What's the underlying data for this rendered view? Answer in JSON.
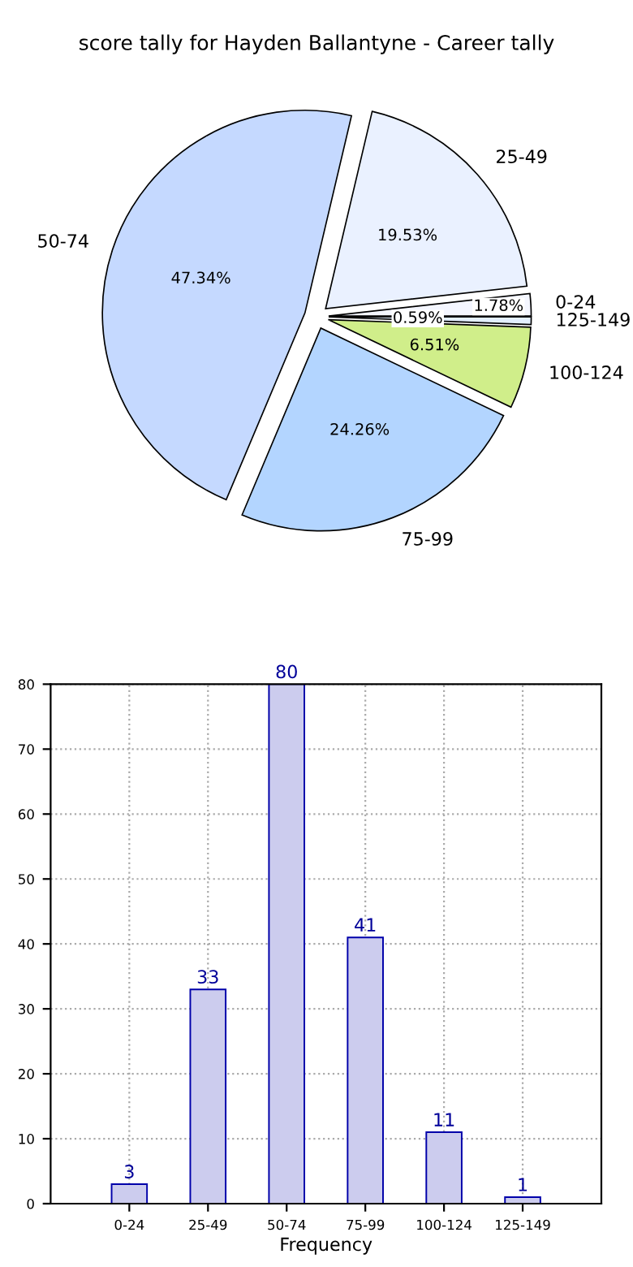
{
  "chart_data": [
    {
      "type": "pie",
      "title": "score tally for Hayden Ballantyne - Career tally",
      "categories": [
        "0-24",
        "25-49",
        "50-74",
        "75-99",
        "100-124",
        "125-149"
      ],
      "values": [
        1.78,
        19.53,
        47.34,
        24.26,
        6.51,
        0.59
      ],
      "colors": [
        "#f4f6ff",
        "#eaf1ff",
        "#c5d9ff",
        "#b3d5ff",
        "#d0ee8a",
        "#e3efff"
      ],
      "value_labels": [
        "1.78%",
        "19.53%",
        "47.34%",
        "24.26%",
        "6.51%",
        "0.59%"
      ],
      "legend": false
    },
    {
      "type": "bar",
      "xlabel": "Frequency",
      "categories": [
        "0-24",
        "25-49",
        "50-74",
        "75-99",
        "100-124",
        "125-149"
      ],
      "values": [
        3,
        33,
        80,
        41,
        11,
        1
      ],
      "color": "#ccccee",
      "ylim": [
        0,
        80
      ],
      "yticks": [
        0,
        10,
        20,
        30,
        40,
        50,
        60,
        70,
        80
      ],
      "grid": true,
      "data_labels": true,
      "line_style": "dotted"
    }
  ]
}
